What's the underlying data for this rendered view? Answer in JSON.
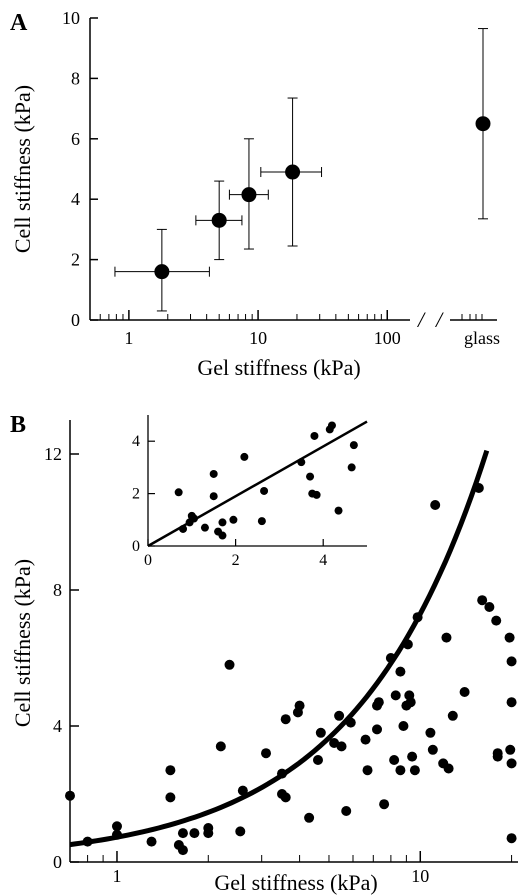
{
  "chart_data": [
    {
      "panel": "A",
      "type": "scatter",
      "xlabel": "Gel stiffness (kPa)",
      "ylabel": "Cell stiffness (kPa)",
      "x_scale": "log",
      "xlim": [
        0.5,
        150
      ],
      "ylim": [
        0,
        10
      ],
      "x_ticks": [
        1,
        10,
        100
      ],
      "x_tick_labels": [
        "1",
        "10",
        "100"
      ],
      "y_ticks": [
        0,
        2,
        4,
        6,
        8,
        10
      ],
      "y_tick_labels": [
        "0",
        "2",
        "4",
        "6",
        "8",
        "10"
      ],
      "extra_category_label": "glass",
      "axis_break_marks": [
        "/",
        "/"
      ],
      "points": [
        {
          "x": 1.8,
          "y": 1.6,
          "x_err": [
            0.78,
            4.2
          ],
          "y_err": [
            0.3,
            3.0
          ]
        },
        {
          "x": 5.0,
          "y": 3.3,
          "x_err": [
            3.3,
            7.5
          ],
          "y_err": [
            2.0,
            4.6
          ]
        },
        {
          "x": 8.5,
          "y": 4.15,
          "x_err": [
            6.0,
            12.0
          ],
          "y_err": [
            2.35,
            6.0
          ]
        },
        {
          "x": 18.5,
          "y": 4.9,
          "x_err": [
            10.5,
            31.0
          ],
          "y_err": [
            2.45,
            7.35
          ]
        }
      ],
      "glass_point": {
        "y": 6.5,
        "y_err": [
          3.35,
          9.65
        ]
      }
    },
    {
      "panel": "B",
      "type": "scatter",
      "xlabel": "Gel stiffness (kPa)",
      "ylabel": "Cell stiffness (kPa)",
      "x_scale": "log",
      "xlim": [
        0.7,
        21
      ],
      "ylim": [
        0,
        13
      ],
      "x_ticks": [
        1,
        10
      ],
      "x_tick_labels": [
        "1",
        "10"
      ],
      "y_ticks": [
        0,
        4,
        8,
        12
      ],
      "y_tick_labels": [
        "0",
        "4",
        "8",
        "12"
      ],
      "fit_line": "linear y = 0.73x",
      "fit_slope": 0.73,
      "points": [
        [
          0.7,
          1.95
        ],
        [
          0.8,
          0.6
        ],
        [
          1.0,
          0.8
        ],
        [
          1.0,
          1.05
        ],
        [
          1.3,
          0.6
        ],
        [
          1.5,
          1.9
        ],
        [
          1.5,
          2.7
        ],
        [
          1.6,
          0.5
        ],
        [
          1.65,
          0.35
        ],
        [
          1.65,
          0.85
        ],
        [
          1.8,
          0.85
        ],
        [
          2.0,
          0.85
        ],
        [
          2.0,
          1.0
        ],
        [
          2.2,
          3.4
        ],
        [
          2.35,
          5.8
        ],
        [
          2.55,
          0.9
        ],
        [
          2.6,
          2.1
        ],
        [
          3.1,
          3.2
        ],
        [
          3.5,
          2.6
        ],
        [
          3.5,
          2.0
        ],
        [
          3.6,
          1.9
        ],
        [
          3.6,
          4.2
        ],
        [
          3.95,
          4.4
        ],
        [
          4.0,
          4.6
        ],
        [
          4.3,
          1.3
        ],
        [
          4.6,
          3.0
        ],
        [
          4.7,
          3.8
        ],
        [
          5.2,
          3.5
        ],
        [
          5.4,
          4.3
        ],
        [
          5.5,
          3.4
        ],
        [
          5.7,
          1.5
        ],
        [
          5.9,
          4.1
        ],
        [
          6.6,
          3.6
        ],
        [
          6.7,
          2.7
        ],
        [
          7.2,
          3.9
        ],
        [
          7.2,
          4.6
        ],
        [
          7.3,
          4.7
        ],
        [
          7.6,
          1.7
        ],
        [
          8.0,
          6.0
        ],
        [
          8.2,
          3.0
        ],
        [
          8.3,
          4.9
        ],
        [
          8.6,
          5.6
        ],
        [
          8.6,
          2.7
        ],
        [
          8.8,
          4.0
        ],
        [
          9.0,
          4.6
        ],
        [
          9.1,
          6.4
        ],
        [
          9.2,
          4.9
        ],
        [
          9.3,
          4.7
        ],
        [
          9.4,
          3.1
        ],
        [
          9.6,
          2.7
        ],
        [
          9.8,
          7.2
        ],
        [
          10.8,
          3.8
        ],
        [
          11.0,
          3.3
        ],
        [
          11.2,
          10.5
        ],
        [
          11.9,
          2.9
        ],
        [
          12.2,
          6.6
        ],
        [
          12.4,
          2.75
        ],
        [
          12.8,
          4.3
        ],
        [
          14.0,
          5.0
        ],
        [
          15.6,
          11.0
        ],
        [
          16.0,
          7.7
        ],
        [
          16.9,
          7.5
        ],
        [
          17.8,
          7.1
        ],
        [
          18.0,
          3.2
        ],
        [
          18.0,
          3.1
        ],
        [
          19.7,
          6.6
        ],
        [
          19.8,
          3.3
        ],
        [
          20.0,
          5.9
        ],
        [
          20.0,
          4.7
        ],
        [
          20.0,
          2.9
        ],
        [
          20.0,
          0.7
        ]
      ],
      "inset": {
        "xlim": [
          0,
          5
        ],
        "ylim": [
          0,
          5
        ],
        "x_ticks": [
          0,
          2,
          4
        ],
        "x_tick_labels": [
          "0",
          "2",
          "4"
        ],
        "y_ticks": [
          0,
          2,
          4
        ],
        "y_tick_labels": [
          "0",
          "2",
          "4"
        ],
        "fit_slope": 0.95,
        "points": [
          [
            0.7,
            2.05
          ],
          [
            0.8,
            0.65
          ],
          [
            0.95,
            0.9
          ],
          [
            1.0,
            1.15
          ],
          [
            1.05,
            1.05
          ],
          [
            1.3,
            0.7
          ],
          [
            1.5,
            1.9
          ],
          [
            1.5,
            2.75
          ],
          [
            1.6,
            0.55
          ],
          [
            1.7,
            0.4
          ],
          [
            1.7,
            0.9
          ],
          [
            1.95,
            1.0
          ],
          [
            2.2,
            3.4
          ],
          [
            2.6,
            0.95
          ],
          [
            2.65,
            2.1
          ],
          [
            3.5,
            3.2
          ],
          [
            3.7,
            2.65
          ],
          [
            3.75,
            2.0
          ],
          [
            3.8,
            4.2
          ],
          [
            3.85,
            1.95
          ],
          [
            4.15,
            4.45
          ],
          [
            4.2,
            4.6
          ],
          [
            4.35,
            1.35
          ],
          [
            4.65,
            3.0
          ],
          [
            4.7,
            3.85
          ]
        ]
      }
    }
  ]
}
